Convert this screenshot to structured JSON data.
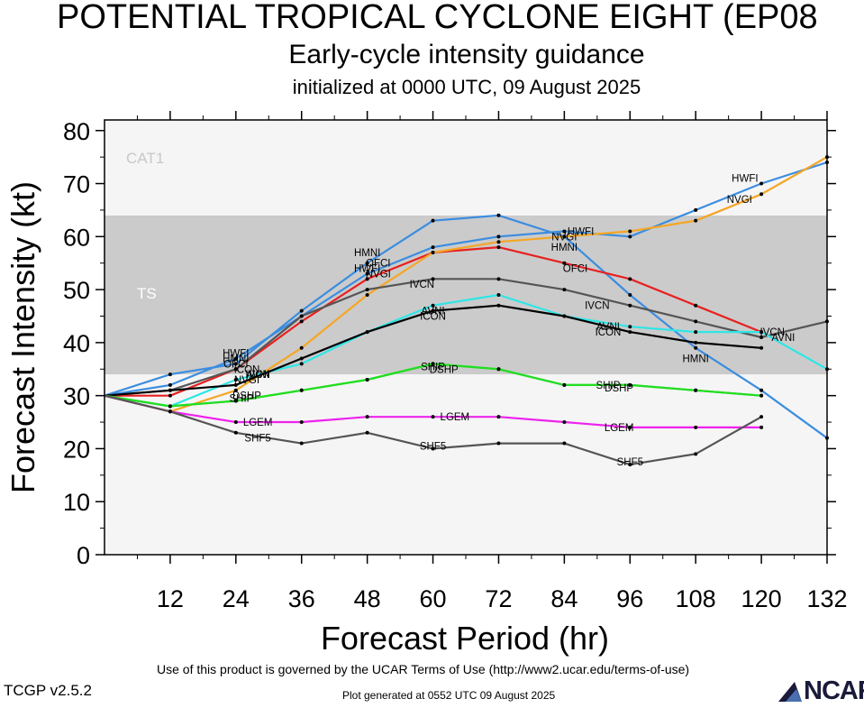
{
  "header": {
    "title": "POTENTIAL TROPICAL CYCLONE EIGHT (EP08",
    "subtitle": "Early-cycle intensity guidance",
    "init_line": "initialized at 0000 UTC, 09 August 2025"
  },
  "footer": {
    "terms": "Use of this product is governed by the UCAR Terms of Use (http://www2.ucar.edu/terms-of-use)",
    "generated": "Plot generated at 0552 UTC   09 August 2025",
    "version": "TCGP v2.5.2",
    "logo_text": "NCAR"
  },
  "chart_data": {
    "type": "line",
    "title": "Early-cycle intensity guidance",
    "xlabel": "Forecast Period (hr)",
    "ylabel": "Forecast Intensity (kt)",
    "xlim": [
      0,
      132
    ],
    "ylim": [
      0,
      82
    ],
    "xticks": [
      12,
      24,
      36,
      48,
      60,
      72,
      84,
      96,
      108,
      120,
      132
    ],
    "yticks": [
      0,
      10,
      20,
      30,
      40,
      50,
      60,
      70,
      80
    ],
    "grid": false,
    "bands": [
      {
        "label": "TS",
        "y0": 34,
        "y1": 64,
        "color": "#cbcbcb"
      },
      {
        "label": "CAT1",
        "y0": 64,
        "y1": 82,
        "color": "#f5f5f5"
      },
      {
        "label": "",
        "y0": 0,
        "y1": 34,
        "color": "#f5f5f5"
      }
    ],
    "series": [
      {
        "name": "HMNI",
        "color": "#3b8de0",
        "x": [
          0,
          12,
          24,
          36,
          48,
          60,
          72,
          84,
          96,
          108,
          120,
          132
        ],
        "y": [
          30,
          34,
          36,
          46,
          55,
          63,
          64,
          60,
          49,
          39,
          31,
          22
        ],
        "labels": [
          [
            24,
            37
          ],
          [
            48,
            57
          ],
          [
            84,
            58
          ],
          [
            108,
            37
          ]
        ]
      },
      {
        "name": "HWFI",
        "color": "#3b8de0",
        "x": [
          0,
          12,
          24,
          36,
          48,
          60,
          72,
          84,
          96,
          108,
          120,
          132
        ],
        "y": [
          30,
          32,
          37,
          45,
          53,
          58,
          60,
          61,
          60,
          65,
          70,
          74
        ],
        "labels": [
          [
            24,
            38
          ],
          [
            48,
            54
          ],
          [
            87,
            61
          ],
          [
            117,
            71
          ]
        ]
      },
      {
        "name": "OFCI",
        "color": "#e82020",
        "x": [
          0,
          12,
          24,
          36,
          48,
          60,
          72,
          84,
          96,
          108,
          120
        ],
        "y": [
          30,
          30,
          35,
          44,
          52,
          57,
          58,
          55,
          52,
          47,
          42
        ],
        "labels": [
          [
            24,
            36
          ],
          [
            50,
            55
          ],
          [
            86,
            54
          ]
        ]
      },
      {
        "name": "NVGI",
        "color": "#f5a623",
        "x": [
          0,
          12,
          24,
          36,
          48,
          60,
          72,
          84,
          96,
          108,
          120,
          132
        ],
        "y": [
          30,
          27,
          31,
          39,
          49,
          57,
          59,
          60,
          61,
          63,
          68,
          75
        ],
        "labels": [
          [
            26,
            33
          ],
          [
            50,
            53
          ],
          [
            84,
            60
          ],
          [
            116,
            67
          ]
        ]
      },
      {
        "name": "IVCN",
        "color": "#555555",
        "x": [
          0,
          12,
          24,
          36,
          48,
          60,
          72,
          84,
          96,
          108,
          120,
          132
        ],
        "y": [
          30,
          31,
          35,
          45,
          50,
          52,
          52,
          50,
          47,
          44,
          41,
          44
        ],
        "labels": [
          [
            28,
            34
          ],
          [
            58,
            51
          ],
          [
            90,
            47
          ],
          [
            122,
            42
          ]
        ]
      },
      {
        "name": "AVNI",
        "color": "#2ee6e6",
        "x": [
          0,
          12,
          24,
          36,
          48,
          60,
          72,
          84,
          96,
          108,
          120,
          132
        ],
        "y": [
          30,
          28,
          33,
          36,
          42,
          47,
          49,
          45,
          43,
          42,
          42,
          35
        ],
        "labels": [
          [
            28,
            34
          ],
          [
            60,
            46
          ],
          [
            92,
            43
          ],
          [
            124,
            41
          ]
        ]
      },
      {
        "name": "ICON",
        "color": "#000000",
        "x": [
          0,
          12,
          24,
          36,
          48,
          60,
          72,
          84,
          96,
          108,
          120
        ],
        "y": [
          30,
          31,
          32,
          37,
          42,
          46,
          47,
          45,
          42,
          40,
          39
        ],
        "labels": [
          [
            26,
            35
          ],
          [
            60,
            45
          ],
          [
            92,
            42
          ]
        ]
      },
      {
        "name": "DSHP",
        "color": "#22dd22",
        "x": [
          0,
          12,
          24,
          36,
          48,
          60,
          72,
          84,
          96,
          108,
          120
        ],
        "y": [
          30,
          28,
          29,
          31,
          33,
          36,
          35,
          32,
          32,
          31,
          30
        ],
        "labels": [
          [
            26,
            30
          ],
          [
            62,
            35
          ],
          [
            94,
            31.5
          ]
        ]
      },
      {
        "name": "SHIP",
        "color": "#22dd22",
        "x": [
          0,
          12,
          24,
          36,
          48,
          60,
          72,
          84,
          96,
          108,
          120
        ],
        "y": [
          30,
          28,
          29,
          31,
          33,
          36,
          35,
          32,
          32,
          31,
          30
        ],
        "labels": [
          [
            25,
            29.5
          ],
          [
            60,
            35.5
          ],
          [
            92,
            32
          ]
        ]
      },
      {
        "name": "LGEM",
        "color": "#ee22ee",
        "x": [
          0,
          12,
          24,
          36,
          48,
          60,
          72,
          84,
          96,
          108,
          120
        ],
        "y": [
          30,
          27,
          25,
          25,
          26,
          26,
          26,
          25,
          24,
          24,
          24
        ],
        "labels": [
          [
            28,
            25
          ],
          [
            64,
            26
          ],
          [
            94,
            24
          ]
        ]
      },
      {
        "name": "SHF5",
        "color": "#555555",
        "x": [
          0,
          12,
          24,
          36,
          48,
          60,
          72,
          84,
          96,
          108,
          120
        ],
        "y": [
          30,
          27,
          23,
          21,
          23,
          20,
          21,
          21,
          17,
          19,
          26
        ],
        "labels": [
          [
            28,
            22
          ],
          [
            60,
            20.5
          ],
          [
            96,
            17.5
          ]
        ]
      }
    ]
  }
}
